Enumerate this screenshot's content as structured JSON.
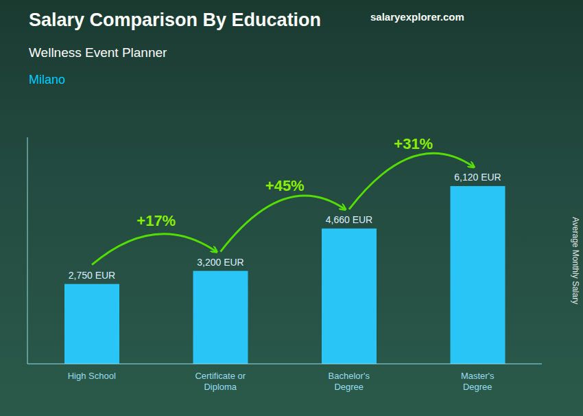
{
  "chart_data": {
    "type": "bar",
    "title": "Salary Comparison By Education",
    "subtitle": "Wellness Event Planner",
    "annotations": [
      {
        "text": "Milano"
      },
      {
        "text": "salaryexplorer.com"
      },
      {
        "text": "+17%",
        "arrow": true
      },
      {
        "text": "+45%",
        "arrow": true
      },
      {
        "text": "+31%",
        "arrow": true
      }
    ],
    "y_label": "Average Monthly Salary",
    "categories": [
      "High School",
      "Certificate or\nDiploma",
      "Bachelor's\nDegree",
      "Master's\nDegree"
    ],
    "values": [
      2750,
      3200,
      4660,
      6120
    ],
    "value_labels": [
      "2,750 EUR",
      "3,200 EUR",
      "4,660 EUR",
      "6,120 EUR"
    ],
    "data_labels": true,
    "color": "#29C5F6",
    "ylim": [
      0,
      7800
    ],
    "yticks": [],
    "tick_labels": "x",
    "grid": false
  }
}
